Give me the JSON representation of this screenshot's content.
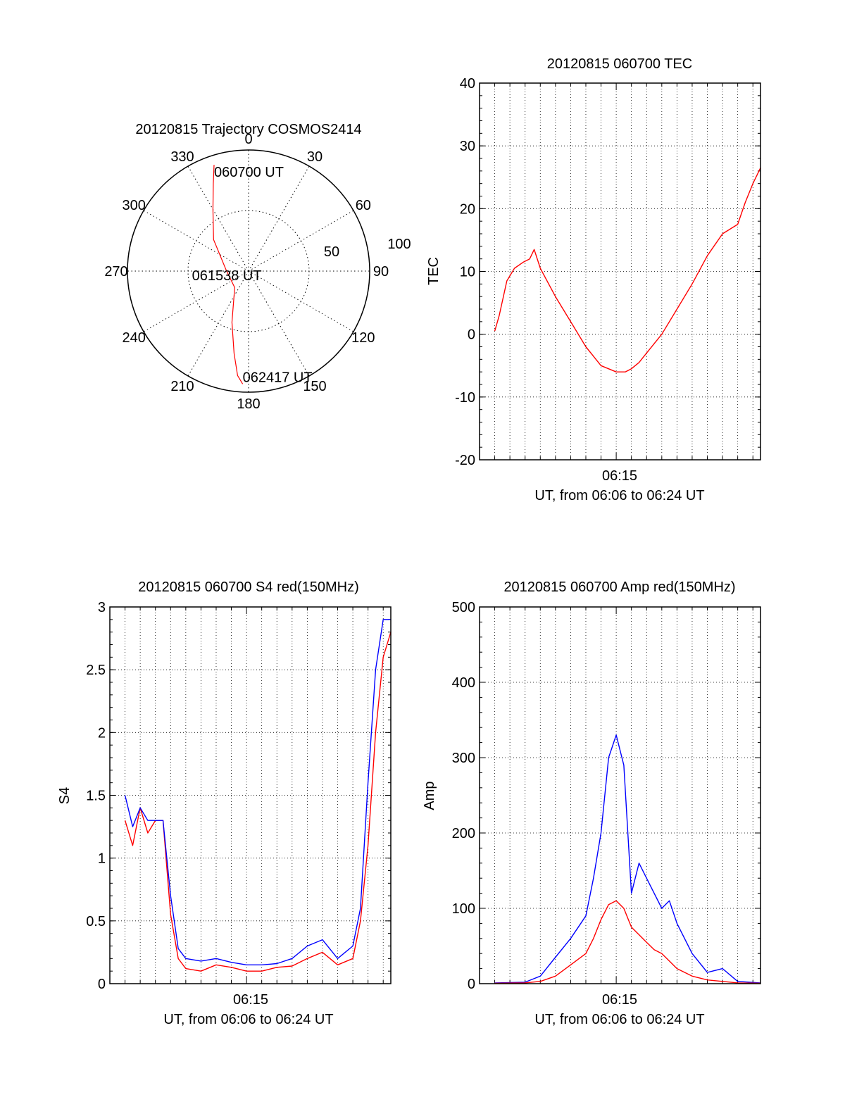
{
  "colors": {
    "red_series": "#ff0000",
    "blue_series": "#0000ff",
    "axis": "#000000",
    "grid": "#000000"
  },
  "chart_data": [
    {
      "type": "polar",
      "title": "20120815 Trajectory COSMOS2414",
      "angle_labels": [
        "0",
        "30",
        "60",
        "90",
        "120",
        "150",
        "180",
        "210",
        "240",
        "270",
        "300",
        "330"
      ],
      "radial_labels": [
        "50",
        "100"
      ],
      "series": [
        {
          "color": "#ff0000",
          "points": [
            {
              "azimuth": 342,
              "elevation": 7
            },
            {
              "azimuth": 338,
              "elevation": 20
            },
            {
              "azimuth": 330,
              "elevation": 37
            },
            {
              "azimuth": 312,
              "elevation": 55
            },
            {
              "azimuth": 275,
              "elevation": 73
            },
            {
              "azimuth": 220,
              "elevation": 74
            },
            {
              "azimuth": 198,
              "elevation": 50
            },
            {
              "azimuth": 190,
              "elevation": 28
            },
            {
              "azimuth": 186,
              "elevation": 12
            },
            {
              "azimuth": 183,
              "elevation": 6
            }
          ]
        }
      ],
      "annotations": [
        {
          "text": "060700 UT",
          "azimuth": 342,
          "elevation": 7
        },
        {
          "text": "061538 UT",
          "azimuth": 275,
          "elevation": 73
        },
        {
          "text": "062417 UT",
          "azimuth": 183,
          "elevation": 6
        }
      ]
    },
    {
      "type": "line",
      "title": "20120815 060700 TEC",
      "xlabel": "UT, from 06:06 to 06:24 UT",
      "ylabel": "TEC",
      "xticks": [
        "06:15"
      ],
      "xlim": [
        6.0,
        24.5
      ],
      "ylim": [
        -20,
        40
      ],
      "yticks": [
        "-20",
        "-10",
        "0",
        "10",
        "20",
        "30",
        "40"
      ],
      "grid": true,
      "series": [
        {
          "color": "#ff0000",
          "x": [
            7.0,
            7.3,
            7.8,
            8.3,
            8.9,
            9.3,
            9.6,
            10.0,
            11.0,
            12.0,
            13.0,
            14.0,
            15.0,
            15.6,
            16.0,
            16.5,
            17.0,
            18.0,
            19.0,
            20.0,
            21.0,
            22.0,
            23.0,
            23.5,
            24.0,
            24.5
          ],
          "y": [
            0.5,
            3,
            8.5,
            10.5,
            11.5,
            12,
            13.5,
            10.5,
            6,
            2,
            -2,
            -5,
            -6,
            -6,
            -5.5,
            -4.5,
            -3,
            0,
            4,
            8,
            12.5,
            16,
            17.5,
            21,
            24,
            26.5
          ]
        }
      ]
    },
    {
      "type": "line",
      "title": "20120815 060700 S4 red(150MHz)",
      "xlabel": "UT, from 06:06 to 06:24 UT",
      "ylabel": "S4",
      "xticks": [
        "06:15"
      ],
      "xlim": [
        6.0,
        24.5
      ],
      "ylim": [
        0,
        3
      ],
      "yticks": [
        "0",
        "0.5",
        "1",
        "1.5",
        "2",
        "2.5",
        "3"
      ],
      "grid": true,
      "series": [
        {
          "color": "#ff0000",
          "x": [
            7.0,
            7.5,
            8.0,
            8.5,
            9.0,
            9.5,
            10.0,
            10.5,
            11.0,
            12.0,
            13.0,
            14.0,
            15.0,
            16.0,
            17.0,
            18.0,
            19.0,
            20.0,
            21.0,
            22.0,
            22.5,
            23.0,
            23.5,
            24.0,
            24.5
          ],
          "y": [
            1.3,
            1.1,
            1.4,
            1.2,
            1.3,
            1.3,
            0.55,
            0.2,
            0.12,
            0.1,
            0.15,
            0.13,
            0.1,
            0.1,
            0.13,
            0.14,
            0.2,
            0.25,
            0.15,
            0.2,
            0.5,
            1.1,
            2.0,
            2.6,
            2.8
          ]
        },
        {
          "color": "#0000ff",
          "x": [
            7.0,
            7.5,
            8.0,
            8.5,
            9.0,
            9.5,
            10.0,
            10.5,
            11.0,
            12.0,
            13.0,
            14.0,
            15.0,
            16.0,
            17.0,
            18.0,
            19.0,
            20.0,
            21.0,
            22.0,
            22.5,
            23.0,
            23.5,
            24.0,
            24.5
          ],
          "y": [
            1.5,
            1.25,
            1.4,
            1.3,
            1.3,
            1.3,
            0.7,
            0.28,
            0.2,
            0.18,
            0.2,
            0.17,
            0.15,
            0.15,
            0.16,
            0.2,
            0.3,
            0.35,
            0.2,
            0.3,
            0.6,
            1.6,
            2.5,
            2.9,
            2.9
          ]
        }
      ]
    },
    {
      "type": "line",
      "title": "20120815 060700 Amp red(150MHz)",
      "xlabel": "UT, from 06:06 to 06:24 UT",
      "ylabel": "Amp",
      "xticks": [
        "06:15"
      ],
      "xlim": [
        6.0,
        24.5
      ],
      "ylim": [
        0,
        500
      ],
      "yticks": [
        "0",
        "100",
        "200",
        "300",
        "400",
        "500"
      ],
      "grid": true,
      "series": [
        {
          "color": "#0000ff",
          "x": [
            7.0,
            9.0,
            10.0,
            11.0,
            12.0,
            13.0,
            13.5,
            14.0,
            14.5,
            15.0,
            15.5,
            16.0,
            16.5,
            17.0,
            17.5,
            18.0,
            18.5,
            19.0,
            20.0,
            21.0,
            22.0,
            23.0,
            24.5
          ],
          "y": [
            1,
            2,
            10,
            35,
            60,
            90,
            140,
            200,
            300,
            330,
            290,
            120,
            160,
            140,
            120,
            100,
            110,
            80,
            40,
            15,
            20,
            3,
            1
          ]
        },
        {
          "color": "#ff0000",
          "x": [
            7.0,
            9.0,
            10.0,
            11.0,
            12.0,
            13.0,
            13.5,
            14.0,
            14.5,
            15.0,
            15.5,
            16.0,
            16.5,
            17.0,
            17.5,
            18.0,
            18.5,
            19.0,
            20.0,
            21.0,
            22.0,
            23.0,
            24.5
          ],
          "y": [
            0.5,
            1,
            3,
            10,
            25,
            40,
            60,
            85,
            105,
            110,
            100,
            75,
            65,
            55,
            45,
            40,
            30,
            20,
            10,
            5,
            3,
            1,
            0.5
          ]
        }
      ]
    }
  ]
}
